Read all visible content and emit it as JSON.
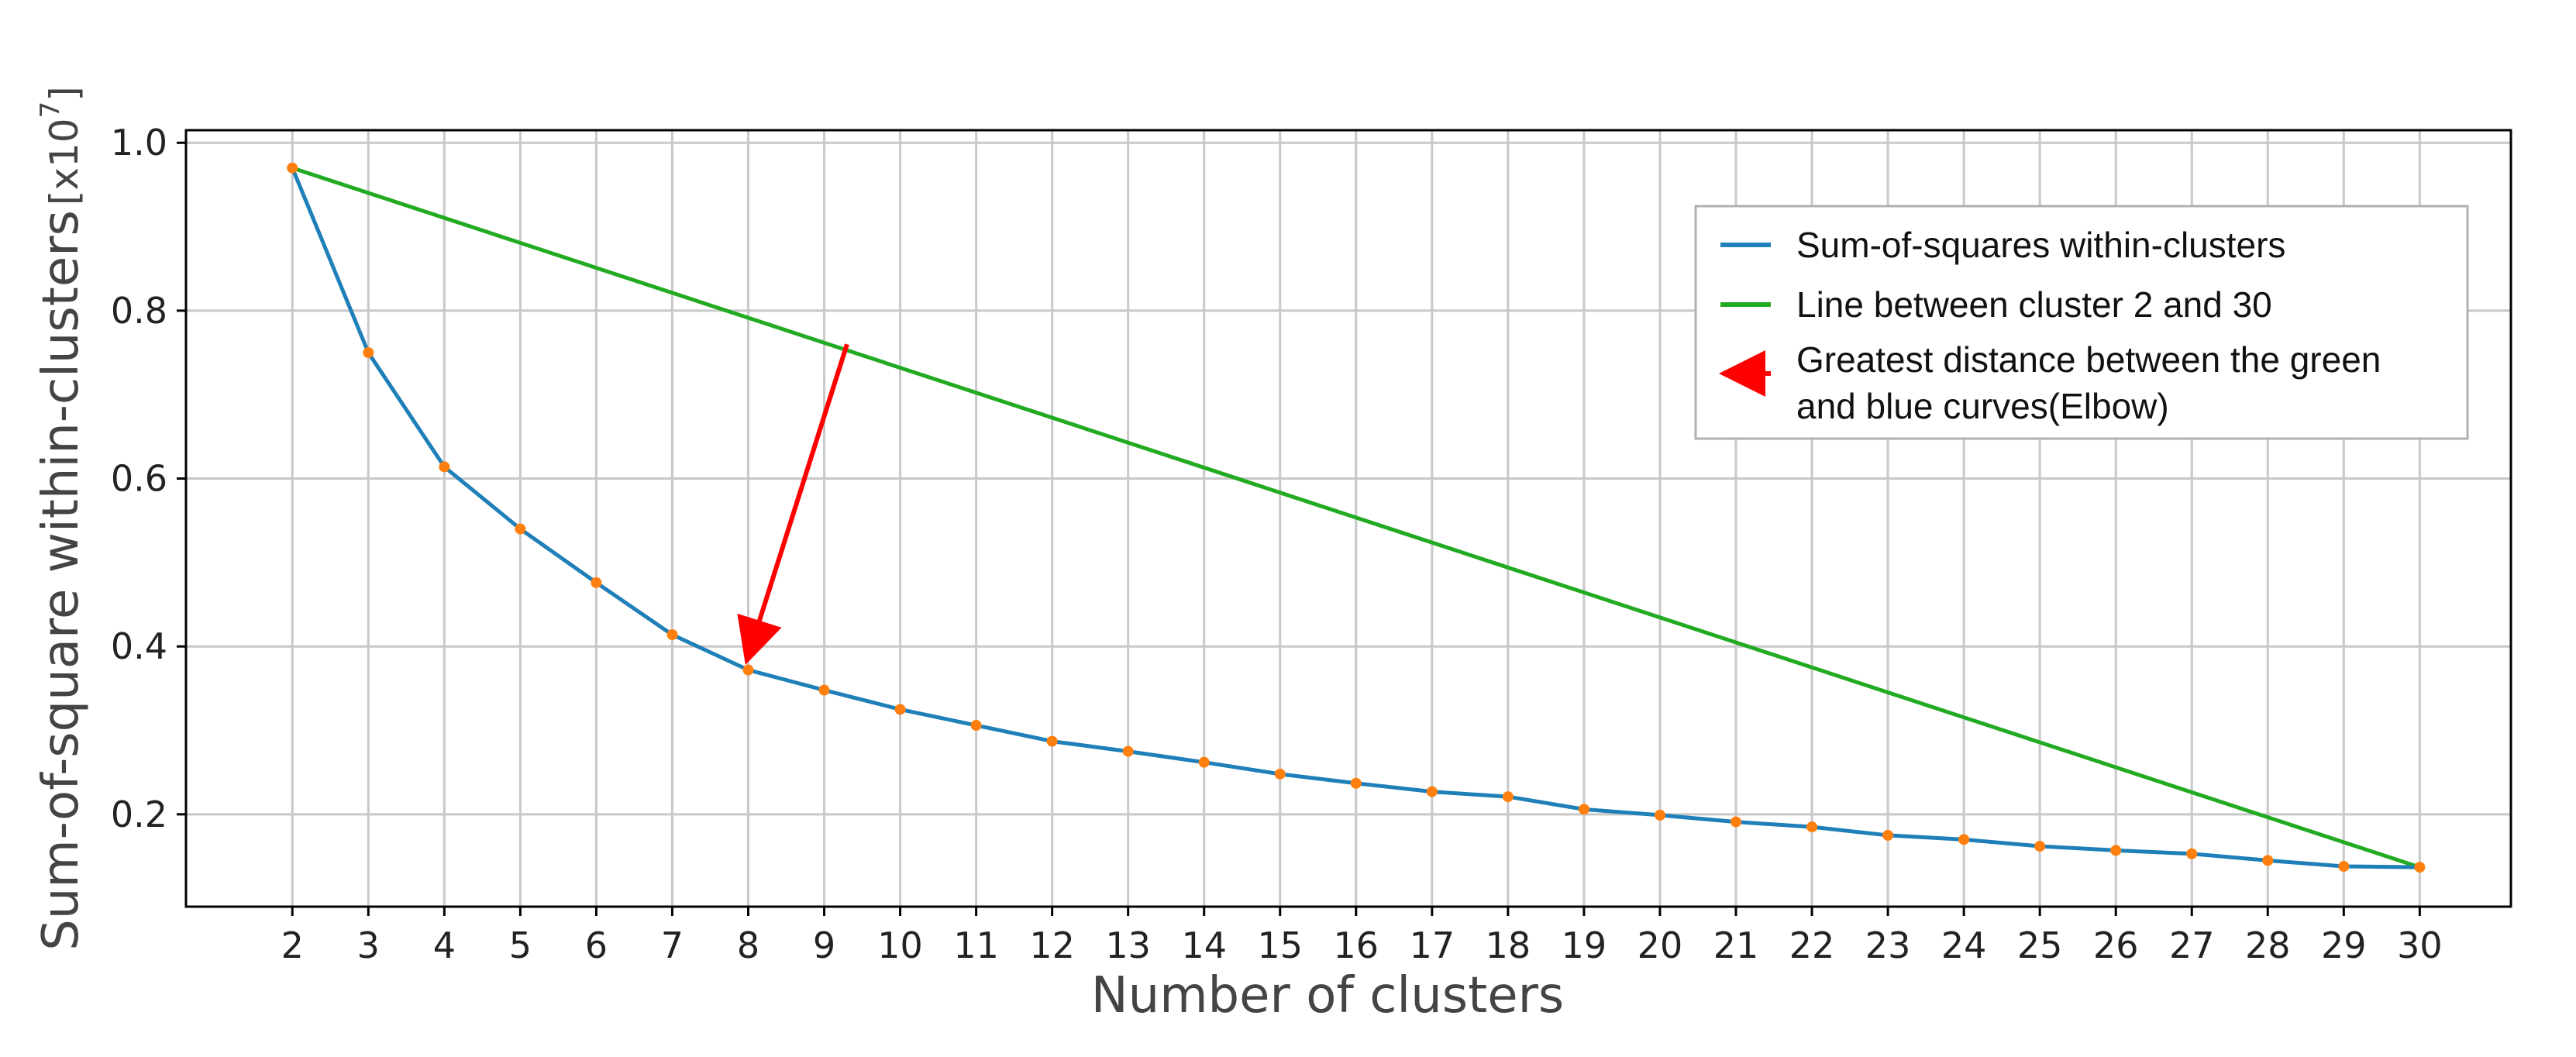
{
  "chart_data": {
    "type": "line",
    "title": "",
    "xlabel": "Number of clusters",
    "ylabel": "Sum-of-square within-clusters",
    "ylabel_unit_prefix": "[x10",
    "ylabel_unit_exponent": "7",
    "ylabel_unit_suffix": "]",
    "xlim": [
      0.6,
      31.2
    ],
    "ylim": [
      0.09,
      1.015
    ],
    "xticks": [
      2,
      3,
      4,
      5,
      6,
      7,
      8,
      9,
      10,
      11,
      12,
      13,
      14,
      15,
      16,
      17,
      18,
      19,
      20,
      21,
      22,
      23,
      24,
      25,
      26,
      27,
      28,
      29,
      30
    ],
    "yticks": [
      0.2,
      0.4,
      0.6,
      0.8,
      1.0
    ],
    "ytick_labels": [
      "0.2",
      "0.4",
      "0.6",
      "0.8",
      "1.0"
    ],
    "grid": true,
    "legend_position": "top-right",
    "series": [
      {
        "name": "Sum-of-squares within-clusters",
        "color": "#1f7fb8",
        "marker_color": "#ff7f0e",
        "x": [
          2,
          3,
          4,
          5,
          6,
          7,
          8,
          9,
          10,
          11,
          12,
          13,
          14,
          15,
          16,
          17,
          18,
          19,
          20,
          21,
          22,
          23,
          24,
          25,
          26,
          27,
          28,
          29,
          30
        ],
        "values": [
          0.97,
          0.75,
          0.614,
          0.54,
          0.476,
          0.414,
          0.372,
          0.348,
          0.325,
          0.306,
          0.287,
          0.275,
          0.262,
          0.248,
          0.237,
          0.227,
          0.221,
          0.206,
          0.199,
          0.191,
          0.185,
          0.175,
          0.17,
          0.162,
          0.157,
          0.153,
          0.145,
          0.138,
          0.137
        ]
      },
      {
        "name": "Line between cluster 2 and 30",
        "color": "#22aa22",
        "x": [
          2,
          30
        ],
        "values": [
          0.97,
          0.137
        ]
      }
    ],
    "annotation": {
      "name_line1": "Greatest distance between the green",
      "name_line2": "and blue curves(Elbow)",
      "color": "#ff0000",
      "from": {
        "x": 9.3,
        "y": 0.76
      },
      "to": {
        "x": 8,
        "y": 0.372
      }
    }
  }
}
